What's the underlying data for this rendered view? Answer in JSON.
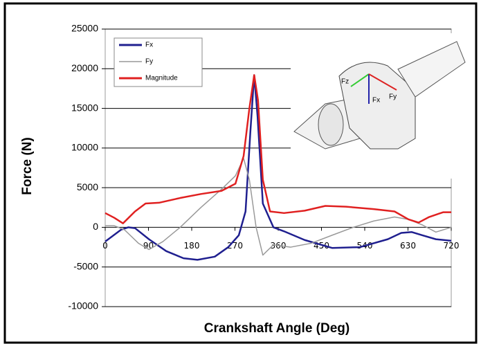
{
  "chart_data": {
    "type": "line",
    "x_label": "Crankshaft Angle (Deg)",
    "y_label": "Force (N)",
    "xlim": [
      0,
      720
    ],
    "xticks": [
      0,
      90,
      180,
      270,
      360,
      450,
      540,
      630,
      720
    ],
    "ylim": [
      -10000,
      25000
    ],
    "yticks": [
      -10000,
      -5000,
      0,
      5000,
      10000,
      15000,
      20000,
      25000
    ],
    "grid": true,
    "legend": "upper left",
    "annotations": [
      "Fz",
      "Fx",
      "Fy"
    ],
    "series": [
      {
        "name": "Fx",
        "color": "#1f1f8f",
        "x": [
          0,
          33,
          48,
          62,
          91,
          127,
          163,
          192,
          228,
          256,
          278,
          292,
          302,
          310,
          317,
          328,
          350,
          372,
          415,
          472,
          530,
          588,
          616,
          638,
          660,
          688,
          720
        ],
        "values": [
          -1800,
          -300,
          0,
          -100,
          -1500,
          -3000,
          -3900,
          -4100,
          -3700,
          -2500,
          -1000,
          2000,
          12000,
          19200,
          14000,
          3000,
          0,
          -500,
          -1600,
          -2600,
          -2500,
          -1500,
          -700,
          -600,
          -1000,
          -1500,
          -1700
        ]
      },
      {
        "name": "Fy",
        "color": "#999999",
        "x": [
          0,
          19,
          40,
          69,
          91,
          120,
          156,
          199,
          242,
          271,
          288,
          300,
          314,
          328,
          350,
          386,
          429,
          472,
          516,
          559,
          602,
          631,
          660,
          688,
          720
        ],
        "values": [
          200,
          200,
          -300,
          -2000,
          -2800,
          -1800,
          0,
          2500,
          4800,
          6500,
          8700,
          6000,
          0,
          -3500,
          -2200,
          -2500,
          -2000,
          -1000,
          0,
          800,
          1300,
          1000,
          300,
          -600,
          0
        ]
      },
      {
        "name": "Magnitude",
        "color": "#e02020",
        "x": [
          0,
          19,
          37,
          62,
          84,
          112,
          156,
          199,
          242,
          271,
          288,
          300,
          310,
          318,
          328,
          343,
          372,
          415,
          458,
          501,
          559,
          602,
          631,
          652,
          674,
          703,
          720
        ],
        "values": [
          1800,
          1200,
          500,
          2000,
          3000,
          3100,
          3700,
          4200,
          4600,
          5500,
          9000,
          15000,
          19200,
          16000,
          6000,
          2000,
          1800,
          2100,
          2700,
          2600,
          2300,
          2000,
          1000,
          600,
          1300,
          1900,
          1900
        ]
      }
    ]
  }
}
